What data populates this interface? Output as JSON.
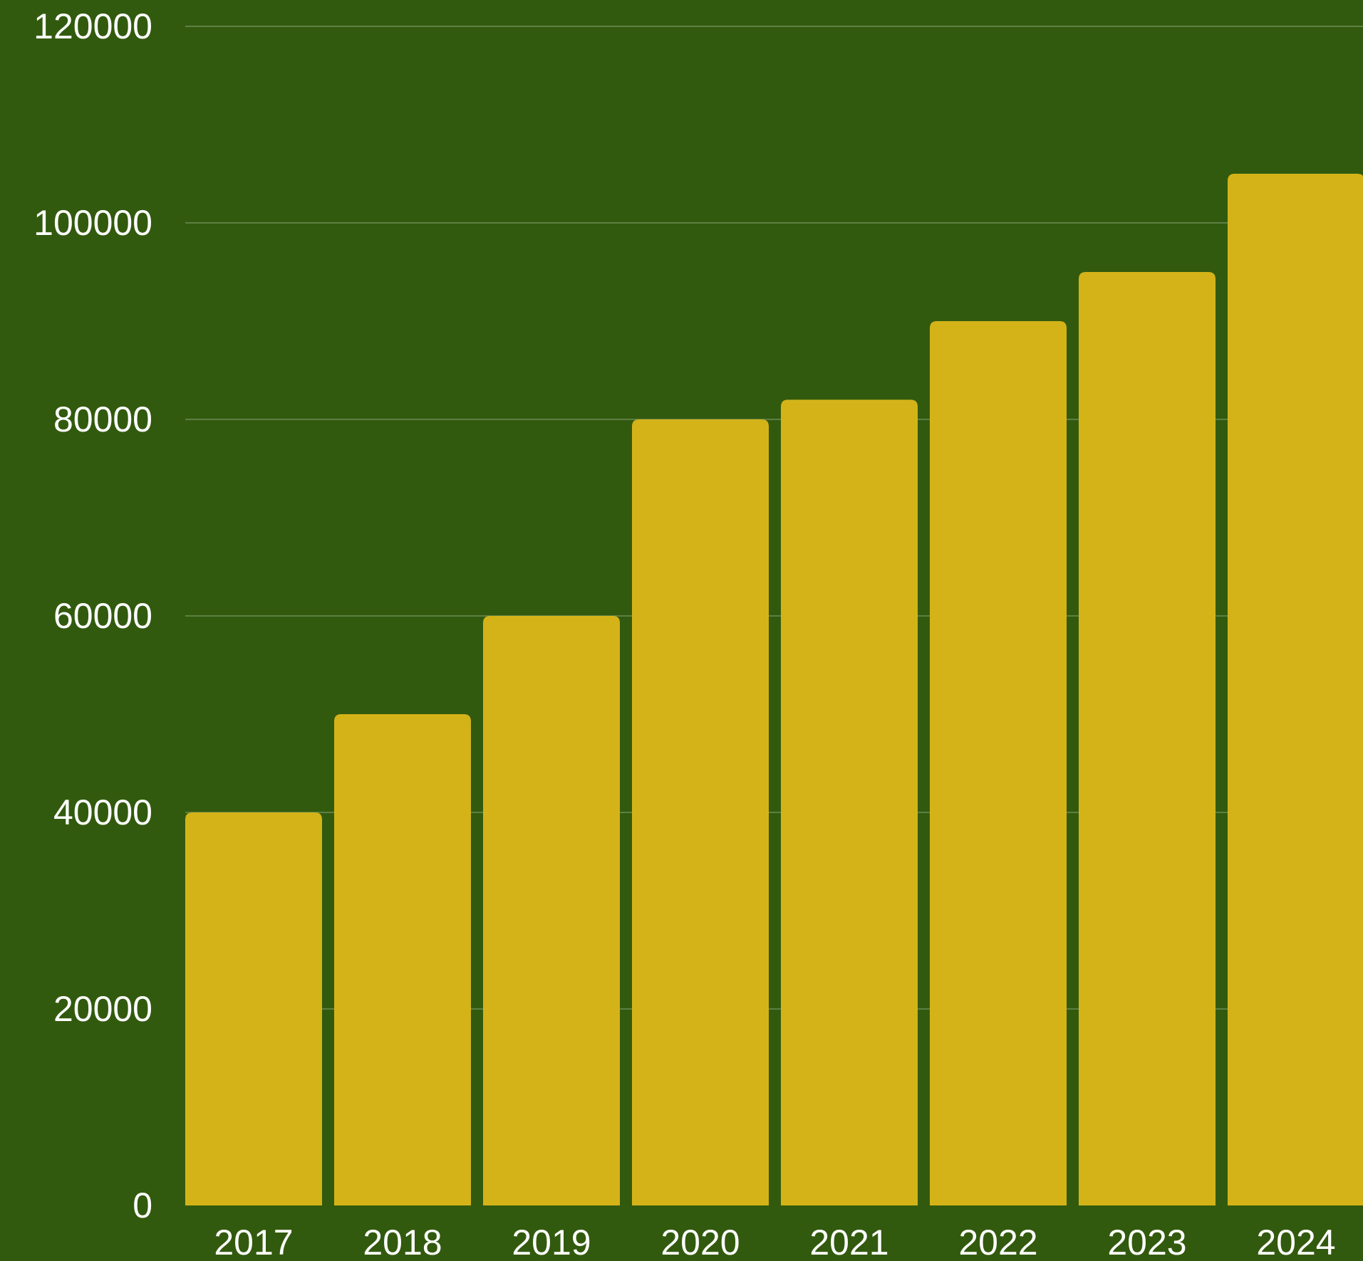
{
  "colors": {
    "background": "#325a0e",
    "bar": "#d4b319",
    "grid": "#5d7f44",
    "text": "#ffffff"
  },
  "chart_data": {
    "type": "bar",
    "categories": [
      "2017",
      "2018",
      "2019",
      "2020",
      "2021",
      "2022",
      "2023",
      "2024"
    ],
    "values": [
      40000,
      50000,
      60000,
      80000,
      82000,
      90000,
      95000,
      105000
    ],
    "yticks": [
      "0",
      "20000",
      "40000",
      "60000",
      "80000",
      "100000",
      "120000"
    ],
    "ylim": [
      0,
      120000
    ],
    "grid": true
  }
}
